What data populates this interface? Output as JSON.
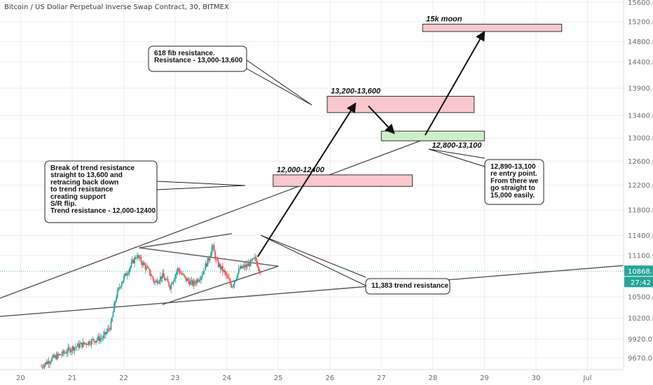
{
  "chart_data": {
    "type": "candlestick",
    "title": "Bitcoin / US Dollar Perpetual Inverse Swap Contract, 30, BITMEX",
    "xlabel": "",
    "ylabel": "",
    "grid": true,
    "x_range": [
      19.6,
      31.7
    ],
    "y_range": [
      9520,
      15650
    ],
    "x_ticks": [
      {
        "value": 20,
        "label": "20"
      },
      {
        "value": 21,
        "label": "21"
      },
      {
        "value": 22,
        "label": "22"
      },
      {
        "value": 23,
        "label": "23"
      },
      {
        "value": 24,
        "label": "24"
      },
      {
        "value": 25,
        "label": "25"
      },
      {
        "value": 26,
        "label": "26"
      },
      {
        "value": 27,
        "label": "27"
      },
      {
        "value": 28,
        "label": "28"
      },
      {
        "value": 29,
        "label": "29"
      },
      {
        "value": 30,
        "label": "30"
      },
      {
        "value": 31,
        "label": "Jul"
      }
    ],
    "y_ticks": [
      {
        "value": 15600,
        "label": "15600.0"
      },
      {
        "value": 15200,
        "label": "15200.0"
      },
      {
        "value": 14800,
        "label": "14800.0"
      },
      {
        "value": 14400,
        "label": "14400.0"
      },
      {
        "value": 13900,
        "label": "13900.0"
      },
      {
        "value": 13400,
        "label": "13400.0"
      },
      {
        "value": 13000,
        "label": "13000.0"
      },
      {
        "value": 12600,
        "label": "12600.0"
      },
      {
        "value": 12200,
        "label": "12200.0"
      },
      {
        "value": 11800,
        "label": "11800.0"
      },
      {
        "value": 11400,
        "label": "11400.0"
      },
      {
        "value": 11100,
        "label": "11100.0"
      },
      {
        "value": 10500,
        "label": "10500.0"
      },
      {
        "value": 10200,
        "label": "10200.0"
      },
      {
        "value": 9920,
        "label": "9920.0"
      },
      {
        "value": 9670,
        "label": "9670.0"
      }
    ],
    "price_path": [
      [
        20.4,
        9560
      ],
      [
        20.6,
        9660
      ],
      [
        20.8,
        9720
      ],
      [
        21.0,
        9800
      ],
      [
        21.2,
        9850
      ],
      [
        21.4,
        9900
      ],
      [
        21.6,
        9940
      ],
      [
        21.75,
        10100
      ],
      [
        21.85,
        10500
      ],
      [
        21.95,
        10700
      ],
      [
        22.1,
        10900
      ],
      [
        22.25,
        11100
      ],
      [
        22.35,
        11000
      ],
      [
        22.5,
        10850
      ],
      [
        22.6,
        10700
      ],
      [
        22.75,
        10800
      ],
      [
        22.9,
        10650
      ],
      [
        23.05,
        10900
      ],
      [
        23.2,
        10750
      ],
      [
        23.35,
        10680
      ],
      [
        23.5,
        10800
      ],
      [
        23.65,
        11050
      ],
      [
        23.72,
        11250
      ],
      [
        23.8,
        11000
      ],
      [
        23.95,
        10850
      ],
      [
        24.1,
        10650
      ],
      [
        24.25,
        10900
      ],
      [
        24.4,
        10950
      ],
      [
        24.55,
        11050
      ],
      [
        24.65,
        10870
      ]
    ],
    "current_price": {
      "value": 10868.5,
      "label": "10868.5",
      "countdown": "27:42"
    },
    "lines": [
      {
        "name": "long-support-line",
        "from": [
          19.6,
          10480
        ],
        "to": [
          28.2,
          13100
        ]
      },
      {
        "name": "lower-trend-line",
        "from": [
          19.6,
          10225
        ],
        "to": [
          31.7,
          10950
        ]
      },
      {
        "name": "upper-trend-line",
        "from": [
          22.3,
          11215
        ],
        "to": [
          24.1,
          11430
        ]
      },
      {
        "name": "triangle-top",
        "from": [
          22.3,
          11215
        ],
        "to": [
          25.0,
          10940
        ]
      },
      {
        "name": "triangle-bottom",
        "from": [
          22.75,
          10390
        ],
        "to": [
          25.0,
          10940
        ]
      }
    ],
    "zones": [
      {
        "name": "zone-12000-12400",
        "label": "12,000-12400",
        "x": [
          24.9,
          27.6
        ],
        "y": [
          12180,
          12370
        ],
        "kind": "resistance"
      },
      {
        "name": "zone-13200-13600",
        "label": "13,200-13,600",
        "x": [
          25.95,
          28.8
        ],
        "y": [
          13450,
          13750
        ],
        "kind": "resistance"
      },
      {
        "name": "zone-12800-13100",
        "label": "12,800-13,100",
        "x": [
          27.0,
          29.0
        ],
        "y": [
          12950,
          13120
        ],
        "kind": "support"
      },
      {
        "name": "zone-15k-moon",
        "label": "15k moon",
        "x": [
          27.8,
          30.5
        ],
        "y": [
          15000,
          15150
        ],
        "kind": "resistance"
      }
    ],
    "arrows": [
      {
        "name": "arrow-up-1",
        "from": [
          24.6,
          11080
        ],
        "to": [
          26.5,
          13620
        ]
      },
      {
        "name": "arrow-down",
        "from": [
          26.75,
          13570
        ],
        "to": [
          27.25,
          13080
        ]
      },
      {
        "name": "arrow-up-2",
        "from": [
          27.85,
          13050
        ],
        "to": [
          29.0,
          15000
        ]
      }
    ],
    "annotations": [
      {
        "name": "note-618-fib",
        "lines": [
          "618 fib resistance.",
          "Resistance - 13,000-13,600"
        ]
      },
      {
        "name": "note-break-trend",
        "lines": [
          "Break of trend resistance",
          "straight to 13,600 and",
          "retracing back down",
          "to trend resistance",
          "creating support",
          "S/R flip.",
          "Trend resistance - 12,000-12400"
        ]
      },
      {
        "name": "note-entry-point",
        "lines": [
          "12,890-13,100",
          "re entry point.",
          "From there we",
          "go straight to",
          "15,000 easily."
        ]
      },
      {
        "name": "note-trend-resistance",
        "lines": [
          "11,383 trend resistance"
        ]
      }
    ]
  },
  "colors": {
    "grid": "#eeeeee",
    "axis_text": "#6b6b6b",
    "up_candle": "#26a69a",
    "down_candle": "#ef5350",
    "line": "#555555",
    "resistance_fill": "#f8c8cc",
    "support_fill": "#cdeecb",
    "price_tag": "#26a69a",
    "countdown_tag": "#26a69a"
  }
}
